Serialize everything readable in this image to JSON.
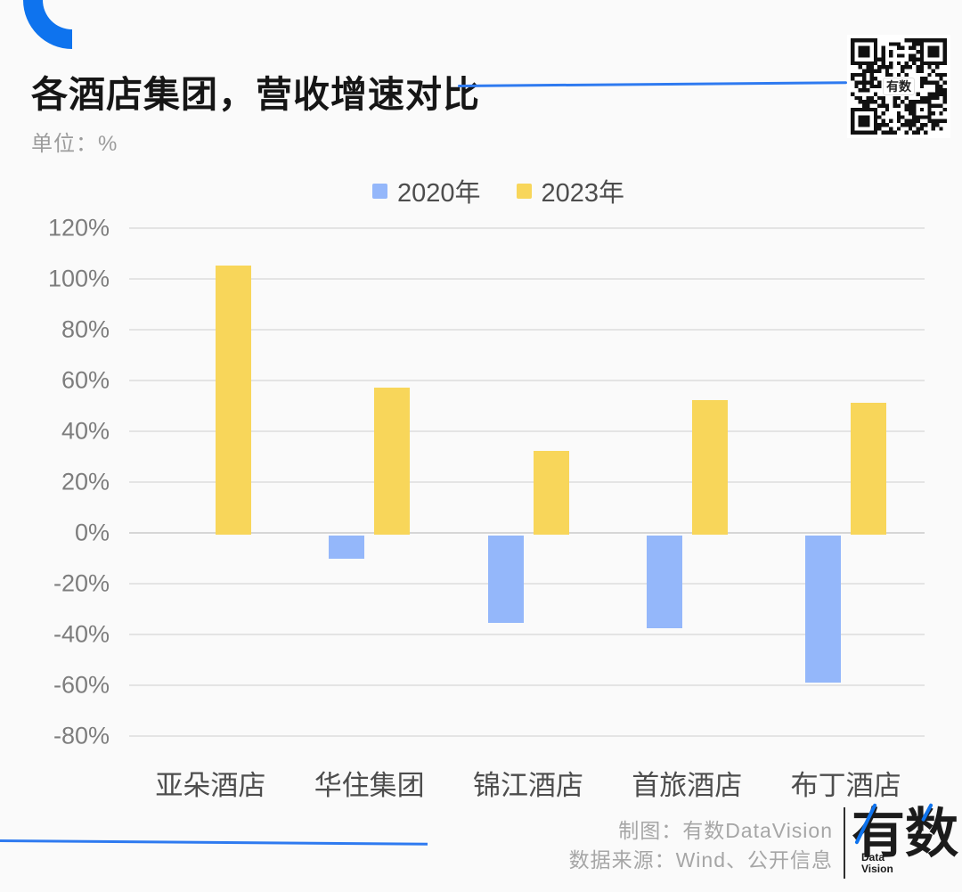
{
  "page": {
    "background": "#fafafa",
    "accent_blue": "#0e73ee",
    "line_blue": "#2e7af0"
  },
  "header": {
    "title": "各酒店集团，营收增速对比",
    "unit_label": "单位：%"
  },
  "qr_code": {
    "center_label": "有数"
  },
  "chart_data": {
    "type": "bar",
    "title": "各酒店集团，营收增速对比",
    "unit": "%",
    "categories": [
      "亚朵酒店",
      "华住集团",
      "锦江酒店",
      "首旅酒店",
      "布丁酒店"
    ],
    "series": [
      {
        "name": "2020年",
        "color": "#94b7fa",
        "values": [
          0,
          -9,
          -34.5,
          -36.5,
          -58
        ]
      },
      {
        "name": "2023年",
        "color": "#f8d65a",
        "values": [
          106,
          58,
          33,
          53,
          52
        ]
      }
    ],
    "xlabel": "",
    "ylabel": "%",
    "ylim": [
      -80,
      120
    ],
    "ytick_step": 20,
    "ytick_labels": [
      "120%",
      "100%",
      "80%",
      "60%",
      "40%",
      "20%",
      "0%",
      "-20%",
      "-40%",
      "-60%",
      "-80%"
    ],
    "grid": true,
    "legend_position": "top"
  },
  "footer": {
    "credit": "制图：有数DataVision",
    "source": "数据来源：Wind、公开信息",
    "logo_text": "有数",
    "logo_subtext_line1": "Data",
    "logo_subtext_line2": "Vision"
  }
}
